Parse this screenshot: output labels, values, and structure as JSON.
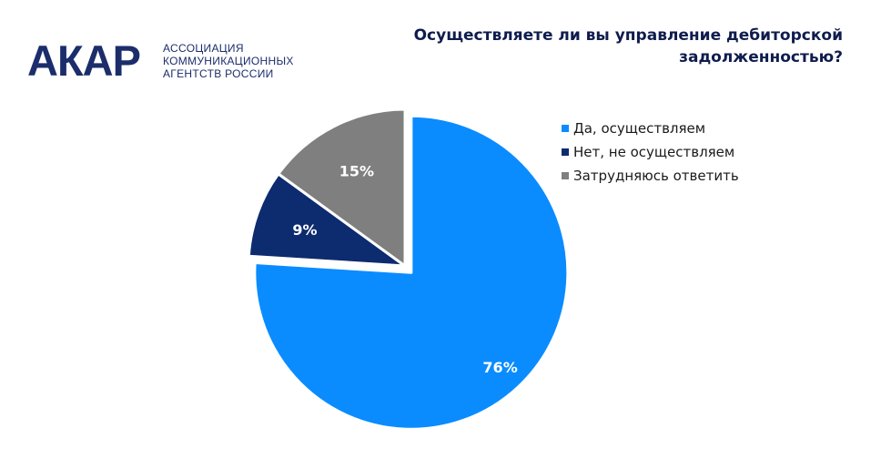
{
  "logo": {
    "mark": "АКАР",
    "subtitle_lines": [
      "АССОЦИАЦИЯ",
      "КОММУНИКАЦИОННЫХ",
      "АГЕНТСТВ РОССИИ"
    ]
  },
  "chart_data": {
    "type": "pie",
    "title_lines": [
      "Осуществляете ли вы управление дебиторской",
      "задолженностью?"
    ],
    "slices": [
      {
        "label": "Да, осуществляем",
        "value": 76,
        "display": "76%",
        "color": "#0a8cff",
        "exploded": true
      },
      {
        "label": "Нет, не осуществляем",
        "value": 9,
        "display": "9%",
        "color": "#0d2b6f",
        "exploded": false
      },
      {
        "label": "Затрудняюсь ответить",
        "value": 15,
        "display": "15%",
        "color": "#7f7f7f",
        "exploded": false
      }
    ],
    "legend_position": "right",
    "start_angle": "12 o'clock",
    "direction": "clockwise"
  }
}
